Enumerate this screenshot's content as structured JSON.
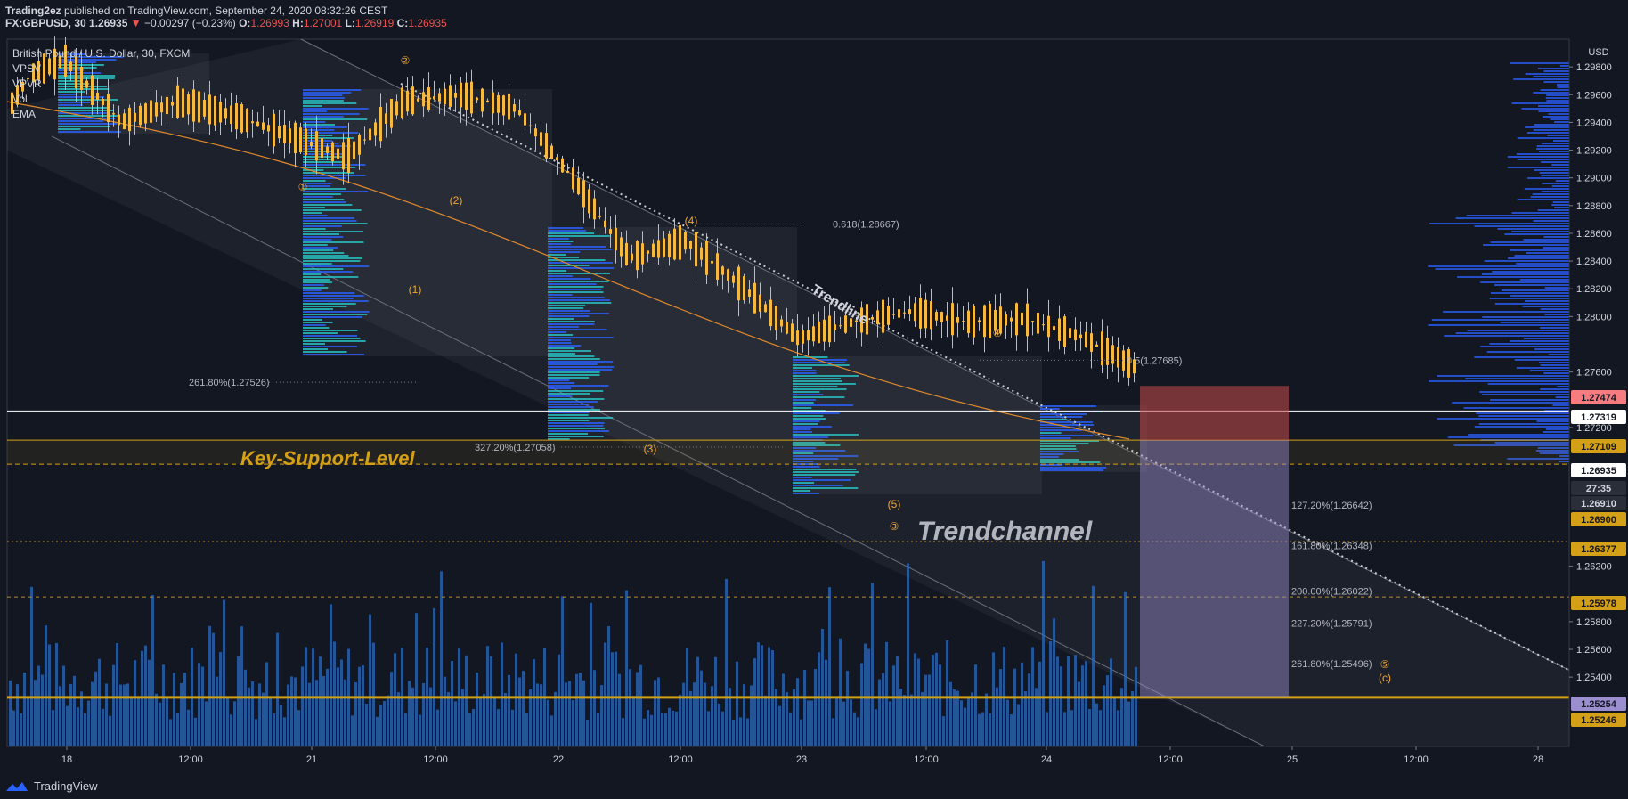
{
  "header": {
    "author": "Trading2ez",
    "published": "published on TradingView.com, September 24, 2020 08:32:26 CEST",
    "symbol": "FX:GBPUSD, 30",
    "last": "1.26935",
    "change": "−0.00297 (−0.23%)",
    "open_label": "O:",
    "open": "1.26993",
    "high_label": "H:",
    "high": "1.27001",
    "low_label": "L:",
    "low": "1.26919",
    "close_label": "C:",
    "close": "1.26935"
  },
  "legend": {
    "title": "British Pound / U.S. Dollar, 30, FXCM",
    "items": [
      "VPSV",
      "VPVR",
      "Vol",
      "EMA"
    ]
  },
  "footer": {
    "brand": "TradingView"
  },
  "colors": {
    "background": "#131722",
    "candle": "#f5b942",
    "ema": "#e08a2e",
    "volume": "#2a6bbf",
    "profile_blue": "#2962ff",
    "profile_teal": "#26c6c6",
    "support": "#d4a017",
    "target_zone": "#9b8fd0",
    "stop_zone": "#c84b4b"
  },
  "chart_data": {
    "type": "candlestick",
    "symbol": "GBPUSD",
    "currency": "USD",
    "ylim": [
      1.249,
      1.3
    ],
    "y_ticks": [
      "1.29800",
      "1.29600",
      "1.29400",
      "1.29200",
      "1.29000",
      "1.28800",
      "1.28600",
      "1.28400",
      "1.28200",
      "1.28000",
      "1.27600",
      "1.27200",
      "1.26200",
      "1.25800",
      "1.25600",
      "1.25400"
    ],
    "x_ticks": [
      "18",
      "12:00",
      "21",
      "12:00",
      "22",
      "12:00",
      "23",
      "12:00",
      "24",
      "12:00",
      "25",
      "12:00",
      "28"
    ],
    "price_markers": [
      {
        "value": "1.27474",
        "color": "#f77c80"
      },
      {
        "value": "1.27319",
        "color": "#ffffff"
      },
      {
        "value": "1.27109",
        "color": "#d4a017"
      },
      {
        "value": "1.26935",
        "color": "#ffffff"
      },
      {
        "value": "27:35",
        "color": "#2a2e39"
      },
      {
        "value": "1.26910",
        "color": "#2a2e39"
      },
      {
        "value": "1.26900",
        "color": "#d4a017"
      },
      {
        "value": "1.26377",
        "color": "#d4a017"
      },
      {
        "value": "1.25978",
        "color": "#d4a017"
      },
      {
        "value": "1.25254",
        "color": "#9b8fd0"
      },
      {
        "value": "1.25246",
        "color": "#d4a017"
      }
    ],
    "price_path_x": [
      0,
      0.2,
      0.5,
      1,
      1.5,
      2,
      2.5,
      3,
      3.5,
      4,
      4.5,
      5,
      5.5,
      6,
      6.5,
      7,
      7.5,
      8,
      8.5,
      9,
      9.5,
      10
    ],
    "price_path_y": [
      1.295,
      1.2975,
      1.2985,
      1.294,
      1.2955,
      1.2945,
      1.293,
      1.2915,
      1.2955,
      1.296,
      1.295,
      1.29,
      1.2845,
      1.286,
      1.283,
      1.2795,
      1.281,
      1.282,
      1.2815,
      1.282,
      1.281,
      1.279
    ],
    "fib_labels": [
      {
        "text": "0.618(1.28667)",
        "price": 1.28667
      },
      {
        "text": "0.5(1.27685)",
        "price": 1.27685
      },
      {
        "text": "261.80%(1.27526)",
        "price": 1.27526
      },
      {
        "text": "327.20%(1.27058)",
        "price": 1.27058
      },
      {
        "text": "127.20%(1.26642)",
        "price": 1.26642
      },
      {
        "text": "161.80%(1.26348)",
        "price": 1.26348
      },
      {
        "text": "200.00%(1.26022)",
        "price": 1.26022
      },
      {
        "text": "227.20%(1.25791)",
        "price": 1.25791
      },
      {
        "text": "261.80%(1.25496)",
        "price": 1.25496
      }
    ],
    "wave_labels": [
      "②",
      "①",
      "(2)",
      "(1)",
      "(4)",
      "(3)",
      "(5)",
      "③",
      "④",
      "⑤",
      "(c)"
    ],
    "annotations": {
      "trendline": "Trendline",
      "support": "Key-Support-Level",
      "channel": "Trendchannel"
    }
  }
}
